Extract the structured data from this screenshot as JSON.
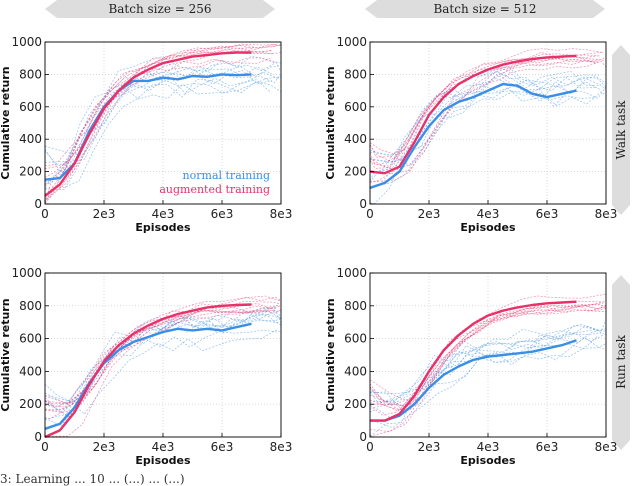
{
  "headers": {
    "col1": "Batch size = 256",
    "col2": "Batch size = 512",
    "row1": "Walk task",
    "row2": "Run task"
  },
  "legend": {
    "normal": "normal training",
    "augmented": "augmented training"
  },
  "caption": "3: Learning ... 10 ... (...) ... (...)",
  "colors": {
    "normal": "#3a8ee6",
    "augmented": "#e8306a",
    "banner": "#dddddd"
  },
  "chart_data": [
    {
      "type": "line",
      "panel": "walk-256",
      "xlabel": "Episodes",
      "ylabel": "Cumulative return",
      "xlim": [
        0,
        8000
      ],
      "ylim": [
        0,
        1000
      ],
      "xticks": [
        "0",
        "2e3",
        "4e3",
        "6e3",
        "8e3"
      ],
      "yticks": [
        "0",
        "200",
        "400",
        "600",
        "800",
        "1000"
      ],
      "grid": true,
      "legend_position": "right-middle",
      "series": [
        {
          "name": "normal training",
          "x": [
            0,
            500,
            1000,
            1500,
            2000,
            2500,
            3000,
            3500,
            4000,
            4500,
            5000,
            5500,
            6000,
            6500,
            7000
          ],
          "values": [
            150,
            160,
            250,
            450,
            600,
            700,
            760,
            760,
            780,
            770,
            790,
            785,
            800,
            795,
            800
          ]
        },
        {
          "name": "augmented training",
          "x": [
            0,
            500,
            1000,
            1500,
            2000,
            2500,
            3000,
            3500,
            4000,
            4500,
            5000,
            5500,
            6000,
            6500,
            7000
          ],
          "values": [
            50,
            120,
            250,
            430,
            590,
            700,
            780,
            830,
            870,
            890,
            910,
            920,
            930,
            935,
            935
          ]
        }
      ]
    },
    {
      "type": "line",
      "panel": "walk-512",
      "xlabel": "Episodes",
      "ylabel": "Cumulative return",
      "xlim": [
        0,
        8000
      ],
      "ylim": [
        0,
        1000
      ],
      "xticks": [
        "0",
        "2e3",
        "4e3",
        "6e3",
        "8e3"
      ],
      "yticks": [
        "0",
        "200",
        "400",
        "600",
        "800",
        "1000"
      ],
      "grid": true,
      "series": [
        {
          "name": "normal training",
          "x": [
            0,
            500,
            1000,
            1500,
            2000,
            2500,
            3000,
            3500,
            4000,
            4500,
            5000,
            5500,
            6000,
            6500,
            7000
          ],
          "values": [
            100,
            130,
            200,
            350,
            480,
            580,
            630,
            660,
            700,
            740,
            730,
            680,
            660,
            680,
            700
          ]
        },
        {
          "name": "augmented training",
          "x": [
            0,
            500,
            1000,
            1500,
            2000,
            2500,
            3000,
            3500,
            4000,
            4500,
            5000,
            5500,
            6000,
            6500,
            7000
          ],
          "values": [
            200,
            190,
            230,
            380,
            550,
            660,
            740,
            790,
            830,
            860,
            880,
            895,
            905,
            910,
            915
          ]
        }
      ]
    },
    {
      "type": "line",
      "panel": "run-256",
      "xlabel": "Episodes",
      "ylabel": "Cumulative return",
      "xlim": [
        0,
        8000
      ],
      "ylim": [
        0,
        1000
      ],
      "xticks": [
        "0",
        "2e3",
        "4e3",
        "6e3",
        "8e3"
      ],
      "yticks": [
        "0",
        "200",
        "400",
        "600",
        "800",
        "1000"
      ],
      "grid": true,
      "series": [
        {
          "name": "normal training",
          "x": [
            0,
            500,
            1000,
            1500,
            2000,
            2500,
            3000,
            3500,
            4000,
            4500,
            5000,
            5500,
            6000,
            6500,
            7000
          ],
          "values": [
            50,
            80,
            180,
            330,
            450,
            530,
            580,
            610,
            640,
            660,
            650,
            660,
            650,
            670,
            690
          ]
        },
        {
          "name": "augmented training",
          "x": [
            0,
            500,
            1000,
            1500,
            2000,
            2500,
            3000,
            3500,
            4000,
            4500,
            5000,
            5500,
            6000,
            6500,
            7000
          ],
          "values": [
            0,
            40,
            150,
            320,
            460,
            560,
            630,
            680,
            720,
            750,
            770,
            790,
            800,
            805,
            808
          ]
        }
      ]
    },
    {
      "type": "line",
      "panel": "run-512",
      "xlabel": "Episodes",
      "ylabel": "Cumulative return",
      "xlim": [
        0,
        8000
      ],
      "ylim": [
        0,
        1000
      ],
      "xticks": [
        "0",
        "2e3",
        "4e3",
        "6e3",
        "8e3"
      ],
      "yticks": [
        "0",
        "200",
        "400",
        "600",
        "800",
        "1000"
      ],
      "grid": true,
      "series": [
        {
          "name": "normal training",
          "x": [
            0,
            500,
            1000,
            1500,
            2000,
            2500,
            3000,
            3500,
            4000,
            4500,
            5000,
            5500,
            6000,
            6500,
            7000
          ],
          "values": [
            100,
            100,
            130,
            200,
            300,
            380,
            430,
            470,
            490,
            500,
            510,
            520,
            540,
            560,
            590
          ]
        },
        {
          "name": "augmented training",
          "x": [
            0,
            500,
            1000,
            1500,
            2000,
            2500,
            3000,
            3500,
            4000,
            4500,
            5000,
            5500,
            6000,
            6500,
            7000
          ],
          "values": [
            100,
            100,
            140,
            250,
            400,
            530,
            620,
            690,
            740,
            770,
            790,
            805,
            815,
            820,
            825
          ]
        }
      ]
    }
  ]
}
